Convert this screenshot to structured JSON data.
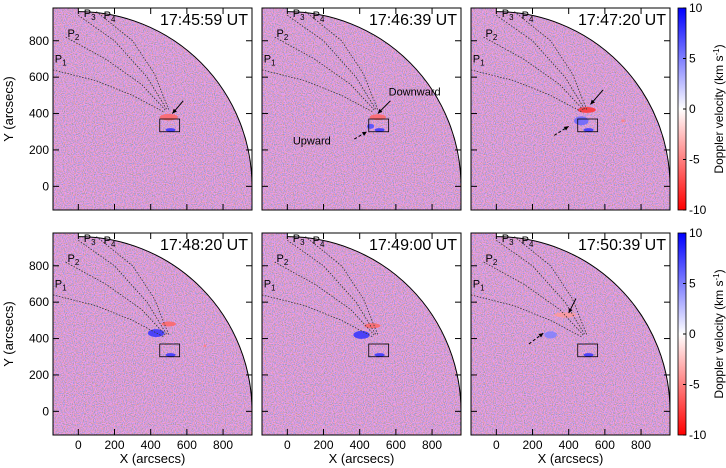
{
  "chart_data": {
    "type": "heatmap",
    "xlabel": "X (arcsecs)",
    "ylabel": "Y (arcsecs)",
    "xlim": [
      -140,
      960
    ],
    "ylim": [
      -130,
      980
    ],
    "xticks": [
      "0",
      "200",
      "400",
      "600",
      "800"
    ],
    "xtick_values": [
      0,
      200,
      400,
      600,
      800
    ],
    "yticks": [
      "0",
      "200",
      "400",
      "600",
      "800"
    ],
    "ytick_values": [
      0,
      200,
      400,
      600,
      800
    ],
    "colorbar": {
      "label": "Doppler velocity (km s",
      "label_sup": "-1",
      "label_end": ")",
      "ticks": [
        "10",
        "5",
        "0",
        "-5",
        "-10"
      ],
      "tick_values": [
        10,
        5,
        0,
        -5,
        -10
      ],
      "min": -10,
      "max": 10,
      "color_min": "#ff0000",
      "color_mid": "#ffffff",
      "color_max": "#0000ff"
    },
    "limb_radius": 960,
    "box": {
      "x": [
        450,
        560
      ],
      "y": [
        300,
        370
      ]
    },
    "path_labels": [
      {
        "base": "P",
        "sub": "1",
        "x": -130,
        "y": 680
      },
      {
        "base": "P",
        "sub": "2",
        "x": -60,
        "y": 820
      },
      {
        "base": "P",
        "sub": "3",
        "x": 30,
        "y": 930
      },
      {
        "base": "P",
        "sub": "4",
        "x": 140,
        "y": 920
      }
    ],
    "paths": [
      [
        [
          -140,
          640
        ],
        [
          100,
          580
        ],
        [
          300,
          500
        ],
        [
          470,
          410
        ]
      ],
      [
        [
          -70,
          820
        ],
        [
          150,
          700
        ],
        [
          350,
          560
        ],
        [
          480,
          420
        ]
      ],
      [
        [
          0,
          940
        ],
        [
          200,
          800
        ],
        [
          380,
          600
        ],
        [
          490,
          420
        ]
      ],
      [
        [
          100,
          960
        ],
        [
          300,
          800
        ],
        [
          420,
          620
        ],
        [
          500,
          420
        ]
      ]
    ],
    "panels": [
      {
        "time": "17:45:59 UT",
        "annotations": [],
        "arrows": [
          {
            "from": [
              580,
              470
            ],
            "to": [
              520,
              400
            ],
            "style": "solid"
          }
        ],
        "blobs": [
          {
            "x": 500,
            "y": 380,
            "rx": 50,
            "ry": 18,
            "v": -6
          },
          {
            "x": 510,
            "y": 310,
            "rx": 28,
            "ry": 10,
            "v": 8
          }
        ]
      },
      {
        "time": "17:46:39 UT",
        "annotations": [
          {
            "text": "Downward",
            "x": 560,
            "y": 500
          },
          {
            "text": "Upward",
            "x": 240,
            "y": 230
          }
        ],
        "arrows": [
          {
            "from": [
              570,
              470
            ],
            "to": [
              500,
              400
            ],
            "style": "solid"
          },
          {
            "from": [
              370,
              260
            ],
            "to": [
              440,
              300
            ],
            "style": "dashed"
          }
        ],
        "blobs": [
          {
            "x": 500,
            "y": 380,
            "rx": 45,
            "ry": 16,
            "v": -6
          },
          {
            "x": 460,
            "y": 330,
            "rx": 20,
            "ry": 14,
            "v": 7
          },
          {
            "x": 510,
            "y": 310,
            "rx": 28,
            "ry": 10,
            "v": 8
          }
        ]
      },
      {
        "time": "17:47:20 UT",
        "annotations": [],
        "arrows": [
          {
            "from": [
              590,
              530
            ],
            "to": [
              520,
              450
            ],
            "style": "solid"
          },
          {
            "from": [
              320,
              280
            ],
            "to": [
              400,
              330
            ],
            "style": "dashed"
          }
        ],
        "blobs": [
          {
            "x": 500,
            "y": 420,
            "rx": 50,
            "ry": 16,
            "v": -8
          },
          {
            "x": 470,
            "y": 360,
            "rx": 40,
            "ry": 25,
            "v": 6
          },
          {
            "x": 510,
            "y": 310,
            "rx": 28,
            "ry": 10,
            "v": 8
          },
          {
            "x": 700,
            "y": 360,
            "rx": 10,
            "ry": 8,
            "v": -5
          }
        ]
      },
      {
        "time": "17:48:20 UT",
        "annotations": [],
        "arrows": [],
        "blobs": [
          {
            "x": 500,
            "y": 480,
            "rx": 40,
            "ry": 14,
            "v": -6
          },
          {
            "x": 430,
            "y": 430,
            "rx": 45,
            "ry": 22,
            "v": 8
          },
          {
            "x": 510,
            "y": 310,
            "rx": 28,
            "ry": 10,
            "v": 8
          },
          {
            "x": 700,
            "y": 360,
            "rx": 8,
            "ry": 8,
            "v": -5
          }
        ]
      },
      {
        "time": "17:49:00 UT",
        "annotations": [],
        "arrows": [],
        "blobs": [
          {
            "x": 470,
            "y": 470,
            "rx": 45,
            "ry": 14,
            "v": -6
          },
          {
            "x": 410,
            "y": 420,
            "rx": 45,
            "ry": 22,
            "v": 8
          },
          {
            "x": 510,
            "y": 310,
            "rx": 28,
            "ry": 10,
            "v": 8
          }
        ]
      },
      {
        "time": "17:50:39 UT",
        "annotations": [],
        "arrows": [
          {
            "from": [
              440,
              620
            ],
            "to": [
              400,
              540
            ],
            "style": "solid"
          },
          {
            "from": [
              180,
              370
            ],
            "to": [
              260,
              430
            ],
            "style": "dashed"
          }
        ],
        "blobs": [
          {
            "x": 380,
            "y": 530,
            "rx": 60,
            "ry": 14,
            "v": -4
          },
          {
            "x": 300,
            "y": 420,
            "rx": 35,
            "ry": 20,
            "v": 5
          },
          {
            "x": 510,
            "y": 310,
            "rx": 28,
            "ry": 10,
            "v": 8
          }
        ]
      }
    ]
  }
}
